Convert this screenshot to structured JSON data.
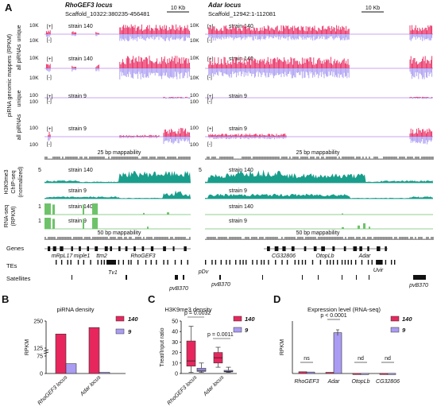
{
  "panel_a": {
    "letter": "A",
    "left_locus": {
      "title": "RhoGEF3 locus",
      "coords": "Scaffold_10322:380235-456481"
    },
    "right_locus": {
      "title": "Adar locus",
      "coords": "Scaffold_12942:1-112081"
    },
    "scalebar": "10 Kb",
    "y_top": "10K",
    "y_bottom": "10K",
    "y_100": "100",
    "plus": "[+]",
    "minus": "[-]",
    "strain140": "strain 140",
    "strain9": "strain 9",
    "label_unique": "unique",
    "label_allpirnas": "all piRNAs",
    "label_mappers": "piRNA genomic mappers (RPKM)",
    "mapp25": "25 bp mappability",
    "mapp50": "50 bp mappability",
    "chip_label": [
      "H3K9me3",
      "ChIP-seq",
      "(normalized)"
    ],
    "chip_scale": "5",
    "rna_label": [
      "RNA-seq",
      "(RPKM)"
    ],
    "rna_scale": "1",
    "genes_label": "Genes",
    "tes_label": "TEs",
    "sat_label": "Satellites",
    "left_genes": [
      "mRpL17",
      "miple1",
      "ttm2",
      "RhoGEF3"
    ],
    "left_tes": [
      "Tv1"
    ],
    "left_sats": [
      "pvB370",
      "pDv",
      "pvB370"
    ],
    "right_genes": [
      "CG32806",
      "OtopLb",
      "Adar"
    ],
    "right_tes": [
      "Uvir"
    ],
    "right_sats": [
      "pvB370"
    ]
  },
  "chart_data": [
    {
      "panel": "B",
      "type": "bar",
      "title": "piRNA density",
      "ylabel": "RPKM",
      "categories": [
        "RhoGEF3 locus",
        "Adar locus"
      ],
      "series": [
        {
          "name": "140",
          "color": "#e8265e",
          "values": [
            190,
            220
          ]
        },
        {
          "name": "9",
          "color": "#a99cf2",
          "values": [
            42,
            5
          ]
        }
      ],
      "yticks": [
        "250",
        "125",
        "75",
        "0"
      ],
      "axis_break": true
    },
    {
      "panel": "C",
      "type": "box",
      "title": "H3K9me3 density",
      "ylabel": "Treat/Input ratio",
      "categories": [
        "RhoGEF3 locus",
        "Adar locus"
      ],
      "yticks": [
        0,
        10,
        20,
        30,
        40,
        50
      ],
      "ylim": [
        0,
        50
      ],
      "series": [
        {
          "name": "140",
          "color": "#e8265e",
          "boxes": [
            {
              "min": 1,
              "q1": 7,
              "median": 12,
              "q3": 31,
              "max": 45
            },
            {
              "min": 6,
              "q1": 10,
              "median": 15,
              "q3": 20,
              "max": 25
            }
          ]
        },
        {
          "name": "9",
          "color": "#a99cf2",
          "boxes": [
            {
              "min": 1,
              "q1": 2,
              "median": 3,
              "q3": 5,
              "max": 10
            },
            {
              "min": 1,
              "q1": 1.5,
              "median": 2,
              "q3": 3,
              "max": 6
            }
          ]
        }
      ],
      "pvalues": [
        "p = 0.0032",
        "p = 0.0011"
      ]
    },
    {
      "panel": "D",
      "type": "bar",
      "title": "Expression level (RNA-seq)",
      "ylabel": "RPKM",
      "categories": [
        "RhoGEF3",
        "Adar",
        "OtopLb",
        "CG32806"
      ],
      "series": [
        {
          "name": "140",
          "color": "#e8265e",
          "values": [
            0.6,
            0.4,
            0.05,
            0.05
          ]
        },
        {
          "name": "9",
          "color": "#a99cf2",
          "values": [
            0.5,
            14,
            0.05,
            0.05
          ]
        }
      ],
      "ylim": [
        0,
        18
      ],
      "significance": [
        "ns",
        "p < 0.0001",
        "nd",
        "nd"
      ]
    }
  ]
}
